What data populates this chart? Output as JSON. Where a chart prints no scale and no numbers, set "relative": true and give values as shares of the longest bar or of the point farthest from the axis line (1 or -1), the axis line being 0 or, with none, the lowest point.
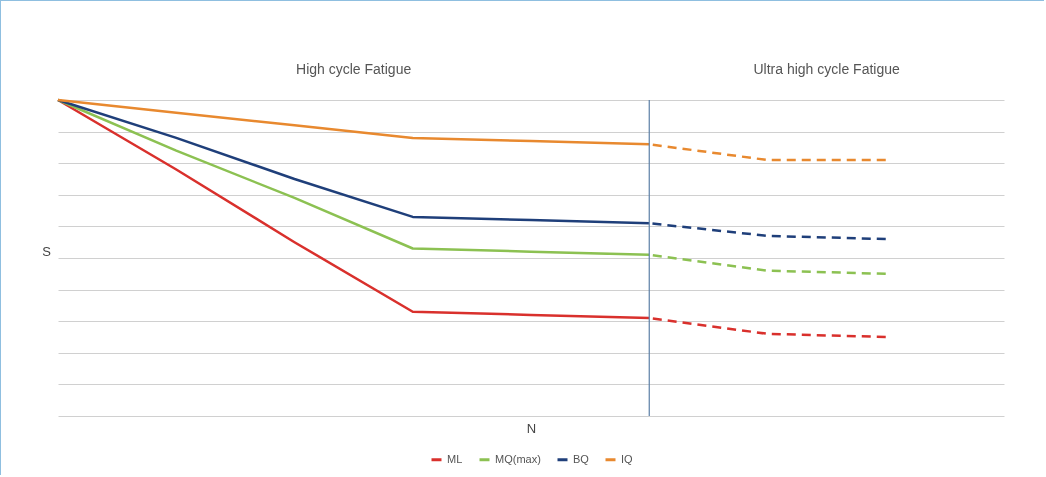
{
  "chart_data": {
    "type": "line",
    "relative": true,
    "xlabel": "N",
    "ylabel": "S",
    "grid": "y",
    "legend": "bottom",
    "categories": [
      null,
      null,
      null,
      null,
      null,
      null,
      null,
      null,
      null
    ],
    "annotations": [
      "High cycle Fatigue",
      "Ultra high cycle Fatigue"
    ],
    "series": [
      {
        "name": "ML",
        "color": "#d9302c",
        "values": [
          1,
          0.78,
          0.55,
          0.33,
          0.32,
          0.31,
          null,
          null,
          null
        ],
        "line_style": "solid"
      },
      {
        "name": "MQ(max)",
        "color": "#8cc152",
        "values": [
          1,
          0.84,
          0.69,
          0.53,
          0.52,
          0.51,
          null,
          null,
          null
        ],
        "line_style": "solid"
      },
      {
        "name": "BQ",
        "color": "#1f3f7a",
        "values": [
          1,
          0.88,
          0.75,
          0.63,
          0.62,
          0.61,
          null,
          null,
          null
        ],
        "line_style": "solid"
      },
      {
        "name": "IQ",
        "color": "#e8892f",
        "values": [
          1,
          0.96,
          0.92,
          0.88,
          0.87,
          0.86,
          null,
          null,
          null
        ],
        "line_style": "solid"
      },
      {
        "color": "#d9302c",
        "values": [
          null,
          null,
          null,
          null,
          null,
          0.31,
          0.26,
          0.25,
          null
        ],
        "line_style": "dashed"
      },
      {
        "color": "#8cc152",
        "values": [
          null,
          null,
          null,
          null,
          null,
          0.51,
          0.46,
          0.45,
          null
        ],
        "line_style": "dashed"
      },
      {
        "color": "#1f3f7a",
        "values": [
          null,
          null,
          null,
          null,
          null,
          0.61,
          0.57,
          0.56,
          null
        ],
        "line_style": "dashed"
      },
      {
        "color": "#e8892f",
        "values": [
          null,
          null,
          null,
          null,
          null,
          0.86,
          0.81,
          0.81,
          null
        ],
        "line_style": "dashed"
      }
    ]
  }
}
